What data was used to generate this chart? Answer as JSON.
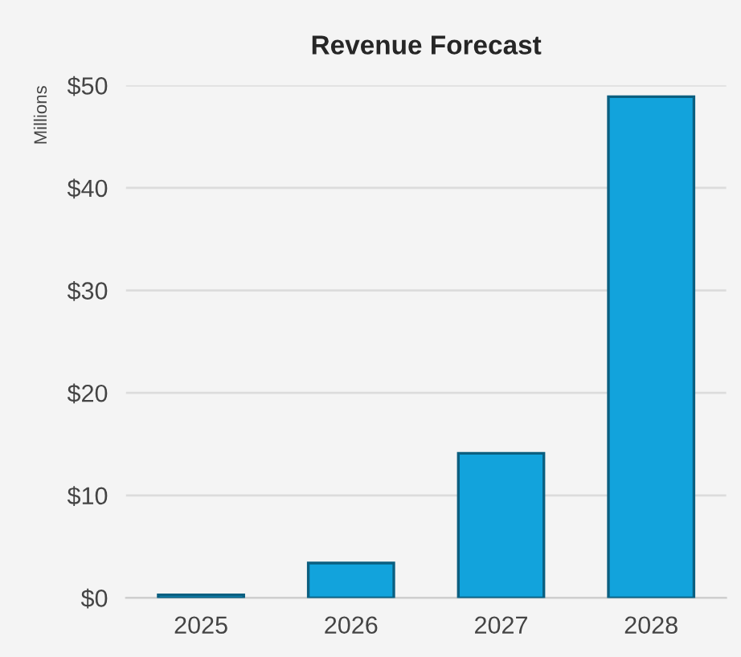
{
  "chart_data": {
    "type": "bar",
    "title": "Revenue Forecast",
    "ylabel": "Millions",
    "categories": [
      "2025",
      "2026",
      "2027",
      "2028"
    ],
    "values": [
      0.3,
      3.4,
      14.1,
      48.9
    ],
    "color": "#12a3dc",
    "ylim": [
      0,
      50
    ],
    "yticks": [
      {
        "value": 0,
        "label": "$0"
      },
      {
        "value": 10,
        "label": "$10"
      },
      {
        "value": 20,
        "label": "$20"
      },
      {
        "value": 30,
        "label": "$30"
      },
      {
        "value": 40,
        "label": "$40"
      },
      {
        "value": 50,
        "label": "$50"
      }
    ],
    "grid": "y",
    "legend": false
  }
}
